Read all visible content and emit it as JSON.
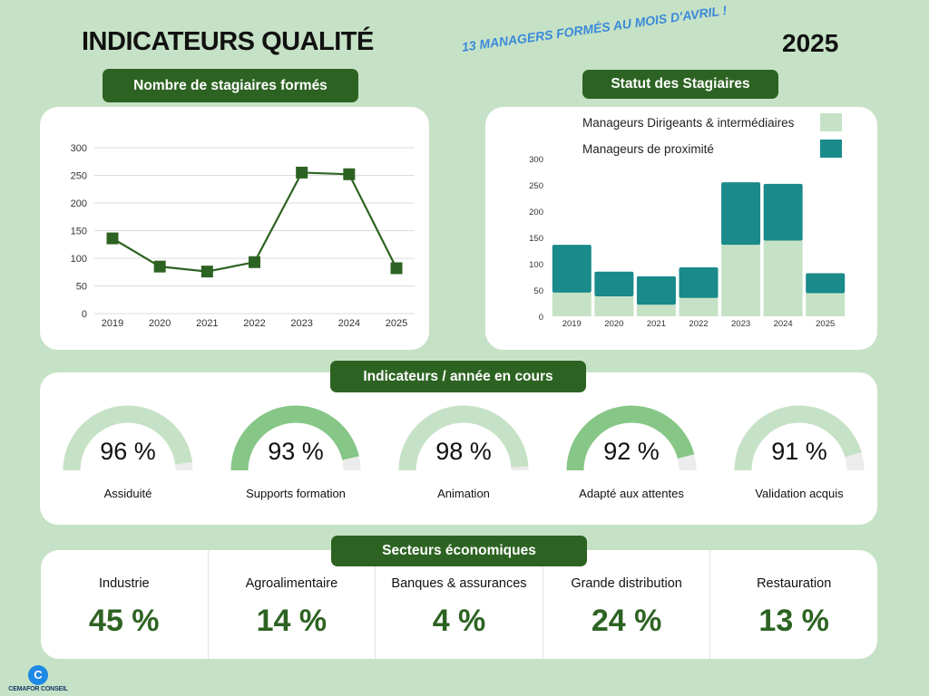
{
  "header": {
    "title": "INDICATEURS QUALITÉ",
    "year": "2025",
    "promo": "13 MANAGERS FORMÉS AU MOIS D'AVRIL !"
  },
  "pills": {
    "line_chart": "Nombre de stagiaires formés",
    "bar_chart": "Statut des Stagiaires",
    "indicators": "Indicateurs / année en cours",
    "sectors": "Secteurs économiques"
  },
  "colors": {
    "dark_green": "#2d6322",
    "light_green": "#c6e2c6",
    "teal": "#1a8a8a",
    "gauge_light": "#c6e2c6",
    "gauge_mid": "#86c686",
    "gauge_track": "#ececec"
  },
  "chart_data": [
    {
      "type": "line",
      "x": [
        "2019",
        "2020",
        "2021",
        "2022",
        "2023",
        "2024",
        "2025"
      ],
      "series": [
        {
          "values": [
            136,
            85,
            76,
            93,
            255,
            252,
            82
          ]
        }
      ],
      "yticks": [
        "0",
        "50",
        "100",
        "150",
        "200",
        "250",
        "300"
      ],
      "ylim": [
        0,
        300
      ],
      "grid": true
    },
    {
      "type": "bar",
      "stacked": true,
      "categories": [
        "2019",
        "2020",
        "2021",
        "2022",
        "2023",
        "2024",
        "2025"
      ],
      "series": [
        {
          "name": "Manageurs Dirigeants & intermédiaires",
          "color": "#c6e2c6",
          "values": [
            45,
            38,
            22,
            35,
            136,
            144,
            44
          ]
        },
        {
          "name": "Manageurs de proximité",
          "color": "#1a8a8a",
          "values": [
            91,
            47,
            54,
            58,
            119,
            108,
            38
          ]
        }
      ],
      "yticks": [
        "0",
        "50",
        "100",
        "150",
        "200",
        "250",
        "300"
      ],
      "ylim": [
        0,
        300
      ],
      "legend": "top"
    }
  ],
  "gauges": [
    {
      "value": 96,
      "display": "96 %",
      "label": "Assiduité",
      "color": "#c6e2c6"
    },
    {
      "value": 93,
      "display": "93 %",
      "label": "Supports formation",
      "color": "#86c686"
    },
    {
      "value": 98,
      "display": "98 %",
      "label": "Animation",
      "color": "#c6e2c6"
    },
    {
      "value": 92,
      "display": "92 %",
      "label": "Adapté aux attentes",
      "color": "#86c686"
    },
    {
      "value": 91,
      "display": "91 %",
      "label": "Validation acquis",
      "color": "#c6e2c6"
    }
  ],
  "sectors": [
    {
      "name": "Industrie",
      "value": "45 %"
    },
    {
      "name": "Agroalimentaire",
      "value": "14 %"
    },
    {
      "name": "Banques & assurances",
      "value": "4 %"
    },
    {
      "name": "Grande distribution",
      "value": "24 %"
    },
    {
      "name": "Restauration",
      "value": "13 %"
    }
  ],
  "logo": {
    "name": "CEMAFOR CONSEIL",
    "icon": "cemafor-logo-icon",
    "mark": "C"
  }
}
